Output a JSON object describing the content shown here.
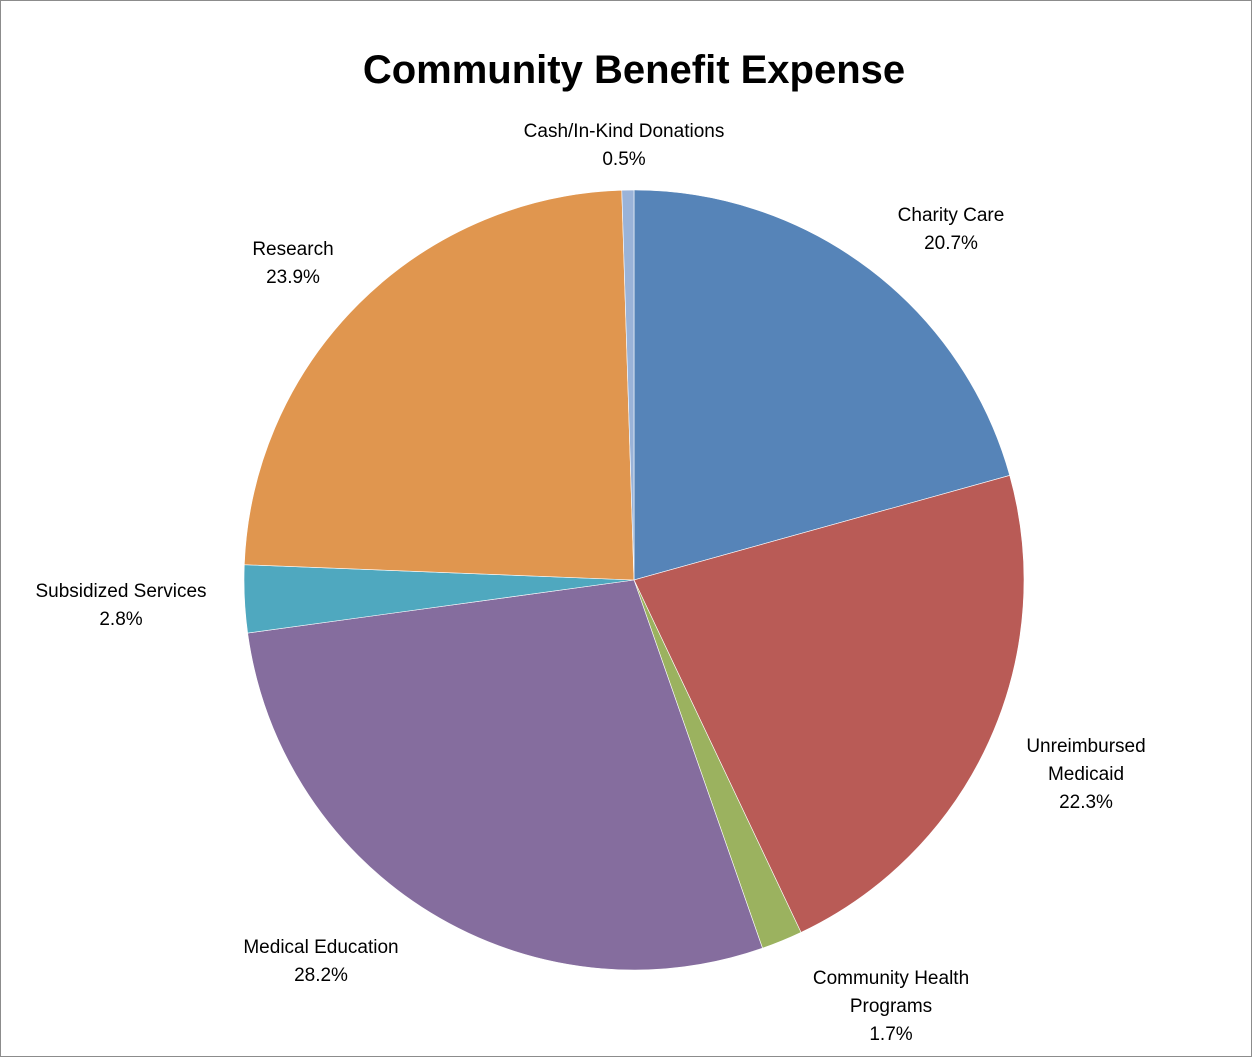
{
  "chart_data": {
    "type": "pie",
    "title": "Community Benefit Expense",
    "slices": [
      {
        "label_lines": [
          "Charity Care"
        ],
        "value_label": "20.7%",
        "value": 20.7,
        "color": "#5684B8"
      },
      {
        "label_lines": [
          "Unreimbursed",
          "Medicaid"
        ],
        "value_label": "22.3%",
        "value": 22.3,
        "color": "#B95B56"
      },
      {
        "label_lines": [
          "Community Health",
          "Programs"
        ],
        "value_label": "1.7%",
        "value": 1.7,
        "color": "#9BB25F"
      },
      {
        "label_lines": [
          "Medical Education"
        ],
        "value_label": "28.2%",
        "value": 28.2,
        "color": "#856D9E"
      },
      {
        "label_lines": [
          "Subsidized Services"
        ],
        "value_label": "2.8%",
        "value": 2.8,
        "color": "#4FA8BF"
      },
      {
        "label_lines": [
          "Research"
        ],
        "value_label": "23.9%",
        "value": 23.9,
        "color": "#E0964F"
      },
      {
        "label_lines": [
          "Cash/In-Kind Donations"
        ],
        "value_label": "0.5%",
        "value": 0.5,
        "color": "#9AB3D8"
      }
    ]
  }
}
